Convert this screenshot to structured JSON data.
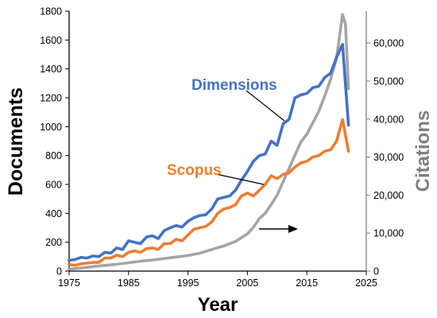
{
  "chart_data": {
    "type": "line",
    "xlabel": "Year",
    "ylabel_left": "Documents",
    "ylabel_right": "Citations",
    "xlim": [
      1975,
      2025
    ],
    "ylim_left": [
      0,
      1800
    ],
    "ylim_right": [
      0,
      68400
    ],
    "x_ticks": [
      "1975",
      "1985",
      "1995",
      "2005",
      "2015",
      "2025"
    ],
    "y_left_ticks": [
      "0",
      "200",
      "400",
      "600",
      "800",
      "1000",
      "1200",
      "1400",
      "1600",
      "1800"
    ],
    "y_right_ticks": [
      "0",
      "10,000",
      "20,000",
      "30,000",
      "40,000",
      "50,000",
      "60,000"
    ],
    "grid": false,
    "colors": {
      "dimensions": "#4472c4",
      "scopus": "#ed7d31",
      "citations": "#a5a5a5",
      "right_axis": "#808080"
    },
    "annotations": [
      {
        "label": "Dimensions",
        "series": "dimensions"
      },
      {
        "label": "Scopus",
        "series": "scopus"
      }
    ],
    "series": [
      {
        "key": "dimensions",
        "axis": "left",
        "x": [
          1975,
          1976,
          1977,
          1978,
          1979,
          1980,
          1981,
          1982,
          1983,
          1984,
          1985,
          1986,
          1987,
          1988,
          1989,
          1990,
          1991,
          1992,
          1993,
          1994,
          1995,
          1996,
          1997,
          1998,
          1999,
          2000,
          2001,
          2002,
          2003,
          2004,
          2005,
          2006,
          2007,
          2008,
          2009,
          2010,
          2011,
          2012,
          2013,
          2014,
          2015,
          2016,
          2017,
          2018,
          2019,
          2020,
          2021,
          2022
        ],
        "y": [
          75,
          80,
          95,
          90,
          105,
          100,
          130,
          125,
          160,
          150,
          210,
          200,
          190,
          235,
          245,
          225,
          280,
          300,
          315,
          305,
          345,
          370,
          385,
          390,
          430,
          500,
          510,
          520,
          560,
          630,
          690,
          760,
          800,
          810,
          900,
          870,
          1020,
          1050,
          1200,
          1220,
          1230,
          1270,
          1280,
          1340,
          1370,
          1480,
          1570,
          1010
        ]
      },
      {
        "key": "scopus",
        "axis": "left",
        "x": [
          1975,
          1976,
          1977,
          1978,
          1979,
          1980,
          1981,
          1982,
          1983,
          1984,
          1985,
          1986,
          1987,
          1988,
          1989,
          1990,
          1991,
          1992,
          1993,
          1994,
          1995,
          1996,
          1997,
          1998,
          1999,
          2000,
          2001,
          2002,
          2003,
          2004,
          2005,
          2006,
          2007,
          2008,
          2009,
          2010,
          2011,
          2012,
          2013,
          2014,
          2015,
          2016,
          2017,
          2018,
          2019,
          2020,
          2021,
          2022
        ],
        "y": [
          45,
          40,
          50,
          55,
          60,
          60,
          90,
          90,
          110,
          100,
          130,
          140,
          130,
          155,
          160,
          150,
          190,
          190,
          220,
          210,
          250,
          290,
          300,
          310,
          340,
          400,
          430,
          440,
          460,
          520,
          540,
          520,
          560,
          600,
          660,
          640,
          670,
          680,
          720,
          750,
          760,
          790,
          800,
          830,
          840,
          900,
          1050,
          830
        ]
      },
      {
        "key": "citations",
        "axis": "right",
        "x": [
          1975,
          1977,
          1979,
          1981,
          1983,
          1985,
          1987,
          1989,
          1991,
          1993,
          1995,
          1997,
          1999,
          2001,
          2003,
          2005,
          2006,
          2007,
          2008,
          2009,
          2010,
          2011,
          2012,
          2013,
          2014,
          2015,
          2016,
          2017,
          2018,
          2019,
          2020,
          2021,
          2021.5,
          2022
        ],
        "y": [
          500,
          800,
          1200,
          1500,
          1800,
          2200,
          2600,
          2900,
          3300,
          3700,
          4100,
          4700,
          5700,
          6600,
          7800,
          9800,
          11500,
          13800,
          15200,
          17500,
          20000,
          23500,
          27000,
          30500,
          34000,
          36000,
          39000,
          42000,
          46000,
          50500,
          56000,
          67500,
          65000,
          48000
        ]
      }
    ]
  }
}
